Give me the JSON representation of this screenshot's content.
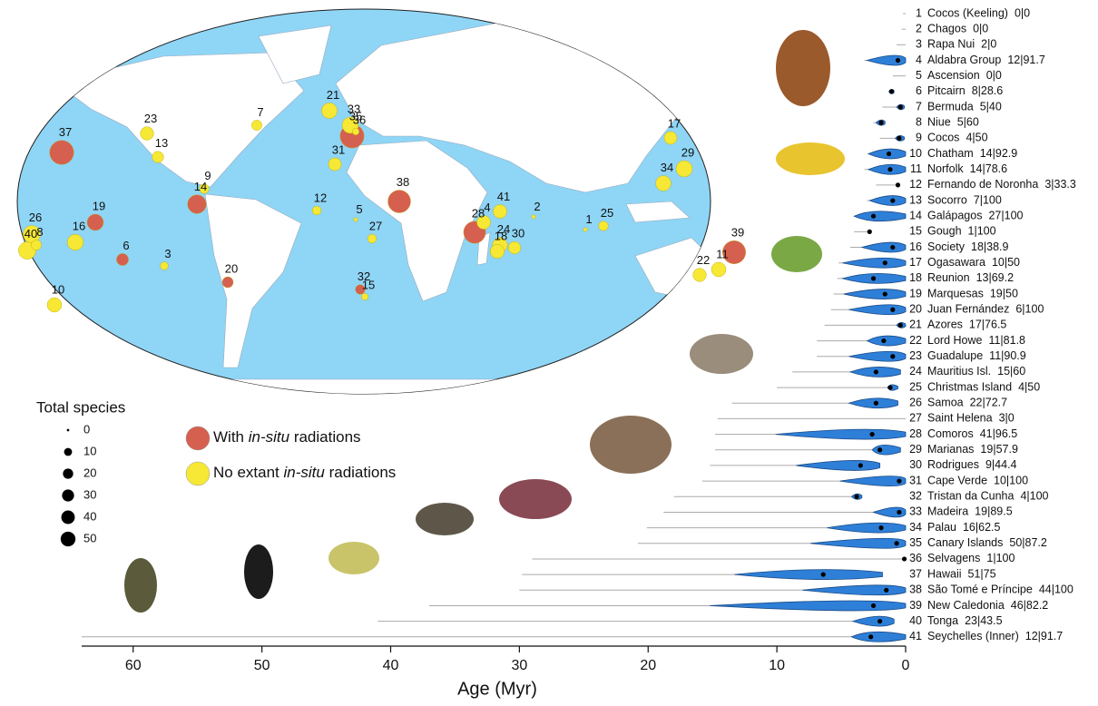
{
  "chart_data": {
    "type": "violin",
    "x_label": "Age (Myr)",
    "xlim": [
      64,
      0
    ],
    "xticks": [
      60,
      50,
      40,
      30,
      20,
      10,
      0
    ],
    "ids": [
      1,
      2,
      3,
      4,
      5,
      6,
      7,
      8,
      9,
      10,
      11,
      12,
      13,
      14,
      15,
      16,
      17,
      18,
      19,
      20,
      21,
      22,
      23,
      24,
      25,
      26,
      27,
      28,
      29,
      30,
      31,
      32,
      33,
      34,
      35,
      36,
      37,
      38,
      39,
      40,
      41
    ],
    "categories": [
      "Cocos (Keeling)",
      "Chagos",
      "Rapa Nui",
      "Aldabra Group",
      "Ascension",
      "Pitcairn",
      "Bermuda",
      "Niue",
      "Cocos",
      "Chatham",
      "Norfolk",
      "Fernando de Noronha",
      "Socorro",
      "Galápagos",
      "Gough",
      "Society",
      "Ogasawara",
      "Reunion",
      "Marquesas",
      "Juan Fernández",
      "Azores",
      "Lord Howe",
      "Guadalupe",
      "Mauritius Isl.",
      "Christmas Island",
      "Samoa",
      "Saint Helena",
      "Comoros",
      "Marianas",
      "Rodrigues",
      "Cape Verde",
      "Tristan da Cunha",
      "Madeira",
      "Palau",
      "Canary Islands",
      "Selvagens",
      "Hawaii",
      "São Tomé e Príncipe",
      "New Caledonia",
      "Tonga",
      "Seychelles (Inner)"
    ],
    "species": [
      0,
      0,
      2,
      12,
      0,
      8,
      5,
      5,
      4,
      14,
      14,
      3,
      7,
      27,
      1,
      18,
      10,
      13,
      19,
      6,
      17,
      11,
      11,
      15,
      4,
      22,
      3,
      41,
      19,
      9,
      10,
      4,
      19,
      16,
      50,
      1,
      51,
      44,
      46,
      23,
      12
    ],
    "percent": [
      0,
      0,
      0,
      91.7,
      0,
      28.6,
      40,
      60,
      50,
      92.9,
      78.6,
      33.3,
      100,
      100,
      100,
      38.9,
      50,
      69.2,
      50,
      100,
      76.5,
      81.8,
      90.9,
      60,
      50,
      72.7,
      0,
      96.5,
      57.9,
      44.4,
      100,
      100,
      89.5,
      62.5,
      87.2,
      100,
      75,
      100,
      82.2,
      43.5,
      91.7
    ],
    "value_labels": [
      "0|0",
      "0|0",
      "2|0",
      "12|91.7",
      "0|0",
      "8|28.6",
      "5|40",
      "5|60",
      "4|50",
      "14|92.9",
      "14|78.6",
      "3|33.3",
      "7|100",
      "27|100",
      "1|100",
      "18|38.9",
      "10|50",
      "13|69.2",
      "19|50",
      "6|100",
      "17|76.5",
      "11|81.8",
      "11|90.9",
      "15|60",
      "4|50",
      "22|72.7",
      "3|0",
      "41|96.5",
      "19|57.9",
      "9|44.4",
      "10|100",
      "4|100",
      "19|89.5",
      "16|62.5",
      "50|87.2",
      "1|100",
      "51|75",
      "44|100",
      "46|82.2",
      "23|43.5",
      "12|91.7"
    ],
    "whisker": [
      0.2,
      0.3,
      0.7,
      3.2,
      1.0,
      1.3,
      1.8,
      2.5,
      2.0,
      2.9,
      3.2,
      2.3,
      3.0,
      4.0,
      4.0,
      4.3,
      5.2,
      5.3,
      5.6,
      5.8,
      6.3,
      6.9,
      6.9,
      8.8,
      10.0,
      13.5,
      14.6,
      14.8,
      14.8,
      15.2,
      15.8,
      18.0,
      18.8,
      20.1,
      20.8,
      29.0,
      29.8,
      30.0,
      37.0,
      41.0,
      64.0
    ],
    "violin": [
      null,
      null,
      null,
      [
        0,
        3.0
      ],
      null,
      [
        0.9,
        1.3
      ],
      [
        0.1,
        0.7
      ],
      [
        1.6,
        2.3
      ],
      [
        0.1,
        0.8
      ],
      [
        0,
        2.9
      ],
      [
        0,
        2.9
      ],
      null,
      [
        0,
        2.8
      ],
      [
        0,
        4.0
      ],
      null,
      [
        0,
        3.4
      ],
      [
        0,
        4.9
      ],
      [
        0,
        4.9
      ],
      [
        0,
        4.8
      ],
      [
        0,
        4.4
      ],
      [
        0,
        0.7
      ],
      [
        0,
        3.0
      ],
      [
        0,
        4.4
      ],
      [
        0.4,
        4.3
      ],
      [
        0.6,
        1.4
      ],
      [
        0.6,
        4.4
      ],
      null,
      [
        0,
        10.1
      ],
      [
        0.4,
        2.6
      ],
      [
        2.0,
        8.5
      ],
      [
        0,
        5.1
      ],
      [
        3.4,
        4.2
      ],
      [
        0,
        2.5
      ],
      [
        0,
        6.1
      ],
      [
        0,
        7.4
      ],
      null,
      [
        1.8,
        13.3
      ],
      [
        0,
        8.0
      ],
      [
        0,
        15.2
      ],
      [
        0.9,
        4.1
      ],
      [
        0,
        4.2
      ]
    ],
    "median": [
      null,
      null,
      null,
      0.6,
      null,
      1.1,
      0.4,
      1.9,
      0.5,
      1.3,
      1.2,
      0.6,
      1.0,
      2.5,
      2.8,
      1.0,
      1.6,
      2.5,
      1.6,
      1.0,
      0.4,
      1.7,
      1.0,
      2.3,
      1.2,
      2.3,
      null,
      2.6,
      2.0,
      3.5,
      0.5,
      3.8,
      0.5,
      1.9,
      0.7,
      0.1,
      6.4,
      1.5,
      2.5,
      2.0,
      2.7
    ],
    "group": [
      1,
      1,
      1,
      1,
      1,
      0,
      1,
      1,
      1,
      1,
      1,
      1,
      1,
      0,
      1,
      1,
      1,
      1,
      0,
      0,
      1,
      1,
      1,
      1,
      1,
      1,
      1,
      0,
      1,
      1,
      1,
      0,
      1,
      1,
      0,
      1,
      0,
      0,
      0,
      1,
      1
    ],
    "groups": [
      {
        "name_parts": [
          "With ",
          "in-situ",
          " radiations"
        ],
        "color": "#d6604f"
      },
      {
        "name_parts": [
          "No extant ",
          "in-situ",
          " radiations"
        ],
        "color": "#f6e834"
      }
    ],
    "size_legend": {
      "title": "Total species",
      "values": [
        0,
        10,
        20,
        30,
        40,
        50
      ]
    },
    "violin_color": "#2e7fd8"
  }
}
